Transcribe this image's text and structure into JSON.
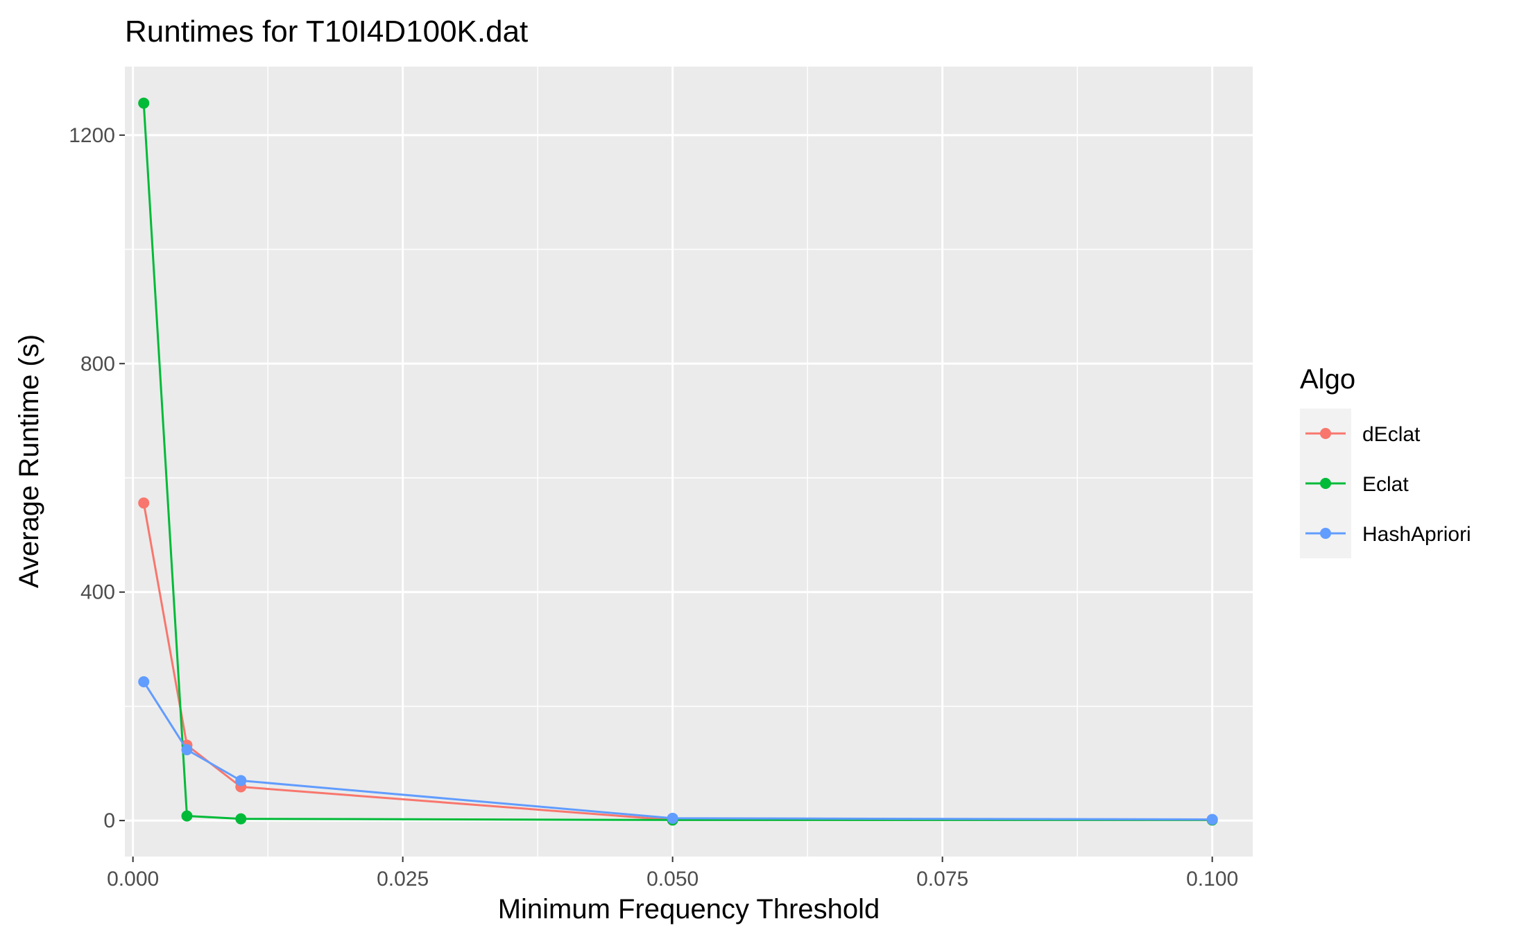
{
  "chart_data": {
    "type": "line",
    "title": "Runtimes for T10I4D100K.dat",
    "xlabel": "Minimum Frequency Threshold",
    "ylabel": "Average Runtime (s)",
    "xlim": [
      -0.00075,
      0.10375
    ],
    "ylim": [
      -63,
      1320
    ],
    "x_ticks": [
      0.0,
      0.025,
      0.05,
      0.075,
      0.1
    ],
    "x_tick_labels": [
      "0.000",
      "0.025",
      "0.050",
      "0.075",
      "0.100"
    ],
    "y_ticks": [
      0,
      400,
      800,
      1200
    ],
    "y_tick_labels": [
      "0",
      "400",
      "800",
      "1200"
    ],
    "grid": true,
    "legend": {
      "title": "Algo",
      "position": "right"
    },
    "series": [
      {
        "name": "dEclat",
        "color": "#F8766D",
        "x": [
          0.001,
          0.005,
          0.01,
          0.05,
          0.1
        ],
        "y": [
          556,
          132,
          59,
          1,
          1
        ]
      },
      {
        "name": "Eclat",
        "color": "#00BA38",
        "x": [
          0.001,
          0.005,
          0.01,
          0.05,
          0.1
        ],
        "y": [
          1256,
          8,
          3,
          1,
          1
        ]
      },
      {
        "name": "HashApriori",
        "color": "#619CFF",
        "x": [
          0.001,
          0.005,
          0.01,
          0.05,
          0.1
        ],
        "y": [
          243,
          124,
          70,
          4,
          2
        ]
      }
    ]
  }
}
